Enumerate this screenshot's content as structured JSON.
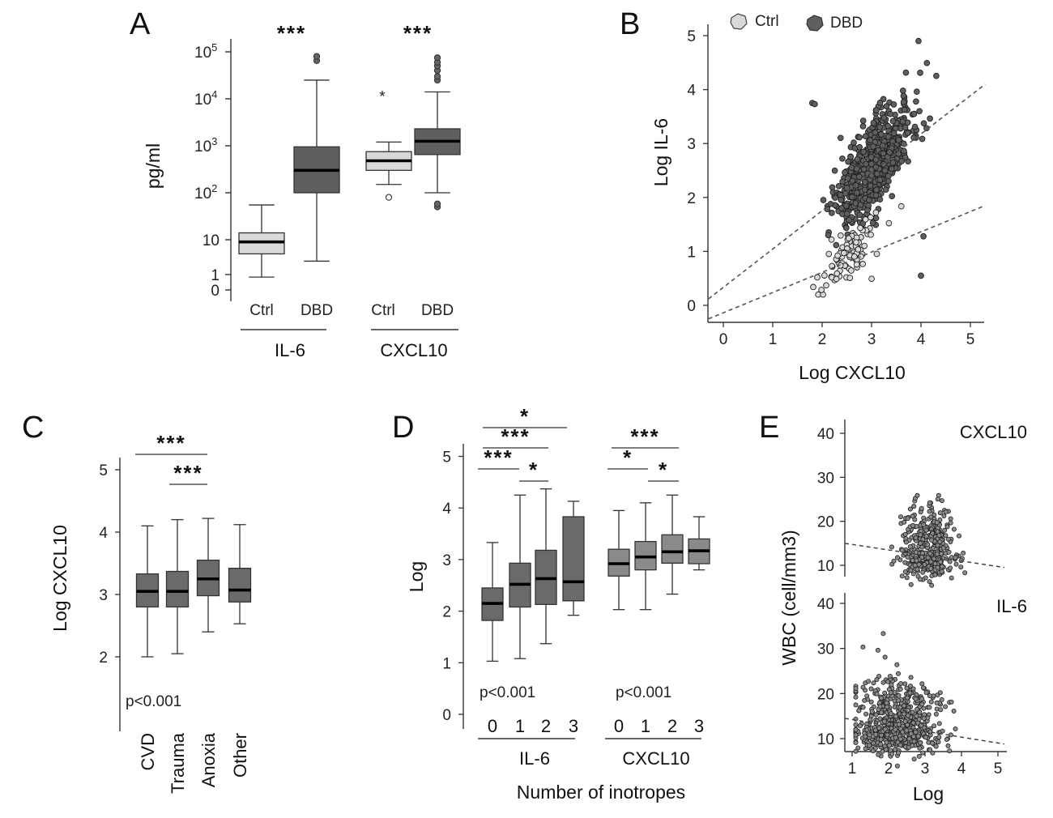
{
  "colors": {
    "ctrl": "#d9d9d9",
    "dbd": "#5f5f5f",
    "box_dark": "#6a6a6a",
    "box_mid": "#8a8a8a",
    "median": "#000000"
  },
  "chart_data": [
    {
      "id": "A",
      "panel_label": "A",
      "type": "box",
      "ylabel": "pg/ml",
      "yscale": "log",
      "yticks": [
        "10^5",
        "10^4",
        "10^3",
        "10^2",
        "10",
        "1",
        "0"
      ],
      "groups": [
        {
          "label": "IL-6",
          "boxes": [
            {
              "label": "Ctrl",
              "color": "#d9d9d9",
              "whislo": 1.6,
              "q1": 5,
              "med": 9,
              "q3": 14,
              "whishi": 55,
              "fliers": []
            },
            {
              "label": "DBD",
              "color": "#5f5f5f",
              "whislo": 3.5,
              "q1": 100,
              "med": 300,
              "q3": 950,
              "whishi": 25000,
              "fliers": [
                65000,
                80000
              ]
            }
          ],
          "stars": "***"
        },
        {
          "label": "CXCL10",
          "boxes": [
            {
              "label": "Ctrl",
              "color": "#d9d9d9",
              "whislo": 150,
              "q1": 300,
              "med": 480,
              "q3": 750,
              "whishi": 1200,
              "fliers": [
                80
              ],
              "extreme": [
                12000
              ]
            },
            {
              "label": "DBD",
              "color": "#5f5f5f",
              "whislo": 100,
              "q1": 650,
              "med": 1250,
              "q3": 2300,
              "whishi": 14000,
              "fliers": [
                50,
                58,
                25000,
                30000,
                40000,
                50000,
                60000,
                75000
              ]
            }
          ],
          "stars": "***"
        }
      ]
    },
    {
      "id": "B",
      "panel_label": "B",
      "type": "scatter",
      "xlabel": "Log CXCL10",
      "ylabel": "Log IL-6",
      "xlim": [
        -0.3,
        5.3
      ],
      "ylim": [
        -0.3,
        5.3
      ],
      "xticks": [
        "0",
        "1",
        "2",
        "3",
        "4",
        "5"
      ],
      "yticks": [
        "0",
        "1",
        "2",
        "3",
        "4",
        "5"
      ],
      "legend": [
        {
          "name": "Ctrl",
          "color": "#d9d9d9"
        },
        {
          "name": "DBD",
          "color": "#5f5f5f"
        }
      ],
      "series": [
        {
          "name": "DBD",
          "color": "#5f5f5f",
          "center": [
            3.05,
            2.6
          ],
          "spread": [
            0.38,
            0.65
          ],
          "n": 700
        },
        {
          "name": "Ctrl",
          "color": "#d9d9d9",
          "center": [
            2.6,
            1.05
          ],
          "spread": [
            0.3,
            0.4
          ],
          "n": 90
        }
      ],
      "outliers": [
        [
          1.8,
          3.75
        ],
        [
          1.85,
          3.73
        ],
        [
          4.0,
          0.55
        ],
        [
          4.05,
          1.28
        ],
        [
          3.95,
          4.9
        ]
      ],
      "fit_lines": [
        {
          "x": [
            -0.3,
            5.3
          ],
          "y": [
            0.12,
            4.1
          ]
        },
        {
          "x": [
            -0.3,
            5.3
          ],
          "y": [
            -0.25,
            1.85
          ]
        }
      ]
    },
    {
      "id": "C",
      "panel_label": "C",
      "type": "box",
      "ylabel": "Log CXCL10",
      "ylim": [
        1.0,
        5.2
      ],
      "yticks": [
        "5",
        "4",
        "3",
        "2"
      ],
      "pvalue": "p<0.001",
      "boxes": [
        {
          "label": "CVD",
          "whislo": 2.0,
          "q1": 2.8,
          "med": 3.05,
          "q3": 3.33,
          "whishi": 4.1
        },
        {
          "label": "Trauma",
          "whislo": 2.05,
          "q1": 2.8,
          "med": 3.05,
          "q3": 3.37,
          "whishi": 4.2
        },
        {
          "label": "Anoxia",
          "whislo": 2.4,
          "q1": 2.98,
          "med": 3.25,
          "q3": 3.55,
          "whishi": 4.22
        },
        {
          "label": "Other",
          "whislo": 2.53,
          "q1": 2.88,
          "med": 3.07,
          "q3": 3.42,
          "whishi": 4.12
        }
      ],
      "comparisons": [
        {
          "from": 0,
          "to": 2,
          "stars": "***"
        },
        {
          "from": 1,
          "to": 2,
          "stars": "***"
        }
      ]
    },
    {
      "id": "D",
      "panel_label": "D",
      "type": "box",
      "ylabel": "Log",
      "xlabel": "Number of inotropes",
      "ylim": [
        -0.2,
        5.3
      ],
      "yticks": [
        "5",
        "4",
        "3",
        "2",
        "1",
        "0"
      ],
      "groups": [
        {
          "label": "IL-6",
          "pvalue": "p<0.001",
          "color": "#6a6a6a",
          "boxes": [
            {
              "label": "0",
              "whislo": 1.03,
              "q1": 1.82,
              "med": 2.15,
              "q3": 2.45,
              "whishi": 3.33
            },
            {
              "label": "1",
              "whislo": 1.08,
              "q1": 2.08,
              "med": 2.52,
              "q3": 2.93,
              "whishi": 4.25
            },
            {
              "label": "2",
              "whislo": 1.37,
              "q1": 2.13,
              "med": 2.63,
              "q3": 3.18,
              "whishi": 4.37
            },
            {
              "label": "3",
              "whislo": 1.92,
              "q1": 2.2,
              "med": 2.57,
              "q3": 3.83,
              "whishi": 4.13
            }
          ],
          "comparisons": [
            {
              "from": 0,
              "to": 1,
              "stars": "***"
            },
            {
              "from": 1,
              "to": 2,
              "stars": "*"
            },
            {
              "from": 0,
              "to": 2,
              "stars": "***"
            },
            {
              "from": 0,
              "to": 3,
              "stars": "*"
            }
          ]
        },
        {
          "label": "CXCL10",
          "pvalue": "p<0.001",
          "color": "#8a8a8a",
          "boxes": [
            {
              "label": "0",
              "whislo": 2.03,
              "q1": 2.68,
              "med": 2.92,
              "q3": 3.2,
              "whishi": 3.95
            },
            {
              "label": "1",
              "whislo": 2.03,
              "q1": 2.8,
              "med": 3.05,
              "q3": 3.35,
              "whishi": 4.1
            },
            {
              "label": "2",
              "whislo": 2.33,
              "q1": 2.93,
              "med": 3.15,
              "q3": 3.48,
              "whishi": 4.25
            },
            {
              "label": "3",
              "whislo": 2.8,
              "q1": 2.92,
              "med": 3.17,
              "q3": 3.4,
              "whishi": 3.83
            }
          ],
          "comparisons": [
            {
              "from": 0,
              "to": 1,
              "stars": "*"
            },
            {
              "from": 1,
              "to": 2,
              "stars": "*"
            },
            {
              "from": 0,
              "to": 2,
              "stars": "***"
            }
          ]
        }
      ]
    },
    {
      "id": "E",
      "panel_label": "E",
      "type": "scatter",
      "ylabel": "WBC (cell/mm3)",
      "xlabel": "Log",
      "xticks": [
        "1",
        "2",
        "3",
        "4",
        "5"
      ],
      "yticks": [
        "40",
        "30",
        "20",
        "10"
      ],
      "xlim": [
        0.85,
        5.2
      ],
      "ylim": [
        0,
        42
      ],
      "subplots": [
        {
          "label": "CXCL10",
          "center": [
            3.05,
            13
          ],
          "spread": [
            0.35,
            4.2
          ],
          "n": 420,
          "fit": {
            "x": [
              0.85,
              5.2
            ],
            "y": [
              15.0,
              9.5
            ]
          }
        },
        {
          "label": "IL-6",
          "center": [
            2.2,
            12.5
          ],
          "spread": [
            0.6,
            4.5
          ],
          "n": 650,
          "fit": {
            "x": [
              0.85,
              5.2
            ],
            "y": [
              14.5,
              8.8
            ]
          }
        }
      ]
    }
  ]
}
